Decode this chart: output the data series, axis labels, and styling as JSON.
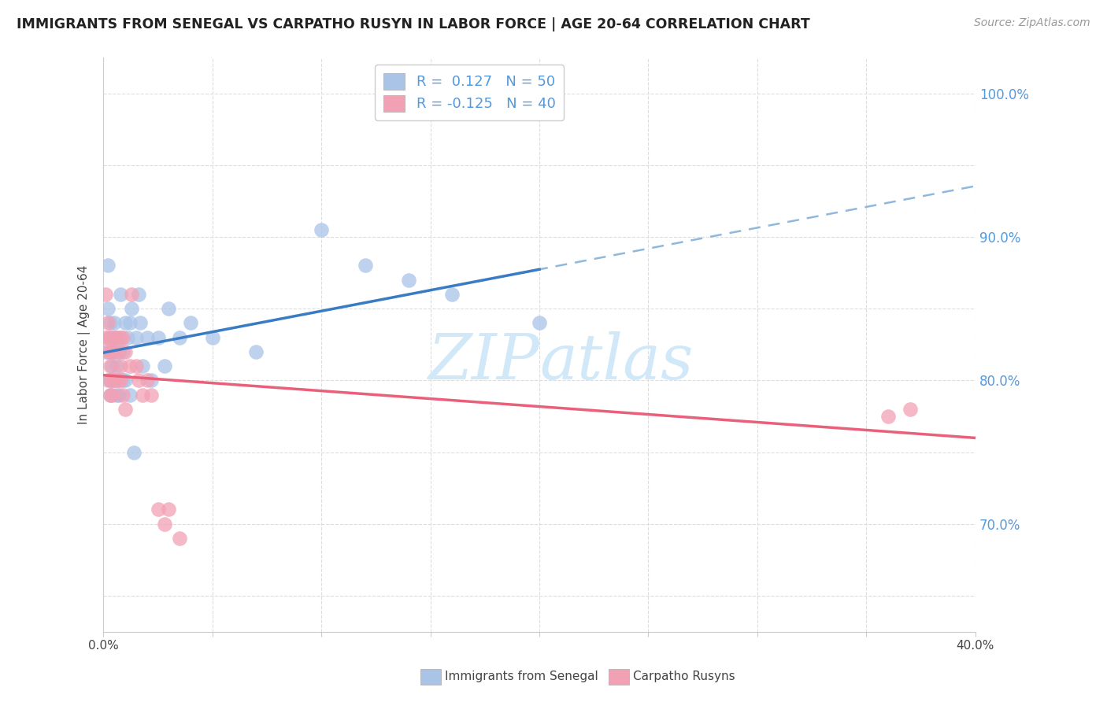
{
  "title": "IMMIGRANTS FROM SENEGAL VS CARPATHO RUSYN IN LABOR FORCE | AGE 20-64 CORRELATION CHART",
  "source": "Source: ZipAtlas.com",
  "ylabel": "In Labor Force | Age 20-64",
  "xlim": [
    0.0,
    0.4
  ],
  "ylim": [
    0.625,
    1.025
  ],
  "xticks": [
    0.0,
    0.05,
    0.1,
    0.15,
    0.2,
    0.25,
    0.3,
    0.35,
    0.4
  ],
  "yticks": [
    0.7,
    0.8,
    0.9,
    1.0
  ],
  "ytick_labels": [
    "70.0%",
    "80.0%",
    "90.0%",
    "100.0%"
  ],
  "blue_color": "#aac4e8",
  "pink_color": "#f2a0b4",
  "blue_line_color": "#3a7cc4",
  "pink_line_color": "#e8607a",
  "blue_dash_color": "#90b8dc",
  "watermark_color": "#d0e8f8",
  "senegal_x": [
    0.001,
    0.002,
    0.002,
    0.003,
    0.003,
    0.003,
    0.003,
    0.003,
    0.004,
    0.004,
    0.004,
    0.004,
    0.005,
    0.005,
    0.005,
    0.005,
    0.006,
    0.006,
    0.006,
    0.007,
    0.007,
    0.008,
    0.008,
    0.009,
    0.009,
    0.01,
    0.01,
    0.011,
    0.012,
    0.012,
    0.013,
    0.014,
    0.015,
    0.016,
    0.017,
    0.018,
    0.02,
    0.022,
    0.025,
    0.028,
    0.03,
    0.035,
    0.04,
    0.05,
    0.07,
    0.1,
    0.12,
    0.14,
    0.16,
    0.2
  ],
  "senegal_y": [
    0.82,
    0.88,
    0.85,
    0.84,
    0.8,
    0.83,
    0.79,
    0.8,
    0.81,
    0.82,
    0.8,
    0.83,
    0.82,
    0.8,
    0.84,
    0.83,
    0.83,
    0.81,
    0.79,
    0.82,
    0.79,
    0.86,
    0.83,
    0.8,
    0.82,
    0.84,
    0.8,
    0.83,
    0.84,
    0.79,
    0.85,
    0.75,
    0.83,
    0.86,
    0.84,
    0.81,
    0.83,
    0.8,
    0.83,
    0.81,
    0.85,
    0.83,
    0.84,
    0.83,
    0.82,
    0.905,
    0.88,
    0.87,
    0.86,
    0.84
  ],
  "rusyn_x": [
    0.001,
    0.001,
    0.002,
    0.002,
    0.002,
    0.002,
    0.003,
    0.003,
    0.003,
    0.003,
    0.004,
    0.004,
    0.004,
    0.005,
    0.005,
    0.005,
    0.006,
    0.006,
    0.007,
    0.007,
    0.008,
    0.008,
    0.008,
    0.009,
    0.009,
    0.01,
    0.01,
    0.012,
    0.013,
    0.015,
    0.016,
    0.018,
    0.02,
    0.022,
    0.025,
    0.028,
    0.03,
    0.035,
    0.36,
    0.37
  ],
  "rusyn_y": [
    0.86,
    0.83,
    0.84,
    0.82,
    0.8,
    0.83,
    0.83,
    0.81,
    0.79,
    0.82,
    0.82,
    0.8,
    0.79,
    0.83,
    0.8,
    0.82,
    0.83,
    0.8,
    0.82,
    0.8,
    0.83,
    0.81,
    0.8,
    0.83,
    0.79,
    0.82,
    0.78,
    0.81,
    0.86,
    0.81,
    0.8,
    0.79,
    0.8,
    0.79,
    0.71,
    0.7,
    0.71,
    0.69,
    0.775,
    0.78
  ],
  "axis_color": "#cccccc",
  "grid_color": "#dddddd",
  "text_color": "#444444",
  "label_color": "#5599dd"
}
